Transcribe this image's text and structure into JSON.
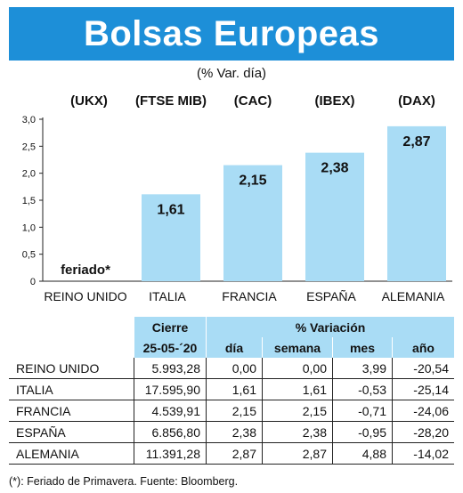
{
  "title": "Bolsas Europeas",
  "subtitle": "(% Var. día)",
  "colors": {
    "banner": "#1d8fd8",
    "bar": "#a9dcf5",
    "header": "#a9dcf5"
  },
  "chart_data": {
    "type": "bar",
    "index_labels": [
      "(UKX)",
      "(FTSE MIB)",
      "(CAC)",
      "(IBEX)",
      "(DAX)"
    ],
    "categories": [
      "REINO UNIDO",
      "ITALIA",
      "FRANCIA",
      "ESPAÑA",
      "ALEMANIA"
    ],
    "values": [
      null,
      1.61,
      2.15,
      2.38,
      2.87
    ],
    "value_labels": [
      "feriado*",
      "1,61",
      "2,15",
      "2,38",
      "2,87"
    ],
    "ylim": [
      0,
      3.0
    ],
    "yticks": [
      0,
      0.5,
      1.0,
      1.5,
      2.0,
      2.5,
      3.0
    ],
    "ytick_labels": [
      "0",
      "0,5",
      "1,0",
      "1,5",
      "2,0",
      "2,5",
      "3,0"
    ],
    "grid": false
  },
  "table": {
    "header_top": {
      "cierre": "Cierre",
      "variacion": "% Variación"
    },
    "header_sub": [
      "25-05-´20",
      "día",
      "semana",
      "mes",
      "año"
    ],
    "rows": [
      {
        "name": "REINO UNIDO",
        "cierre": "5.993,28",
        "dia": "0,00",
        "semana": "0,00",
        "mes": "3,99",
        "anio": "-20,54"
      },
      {
        "name": "ITALIA",
        "cierre": "17.595,90",
        "dia": "1,61",
        "semana": "1,61",
        "mes": "-0,53",
        "anio": "-25,14"
      },
      {
        "name": "FRANCIA",
        "cierre": "4.539,91",
        "dia": "2,15",
        "semana": "2,15",
        "mes": "-0,71",
        "anio": "-24,06"
      },
      {
        "name": "ESPAÑA",
        "cierre": "6.856,80",
        "dia": "2,38",
        "semana": "2,38",
        "mes": "-0,95",
        "anio": "-28,20"
      },
      {
        "name": "ALEMANIA",
        "cierre": "11.391,28",
        "dia": "2,87",
        "semana": "2,87",
        "mes": "4,88",
        "anio": "-14,02"
      }
    ]
  },
  "footnote": "(*): Feriado de Primavera. Fuente: Bloomberg."
}
